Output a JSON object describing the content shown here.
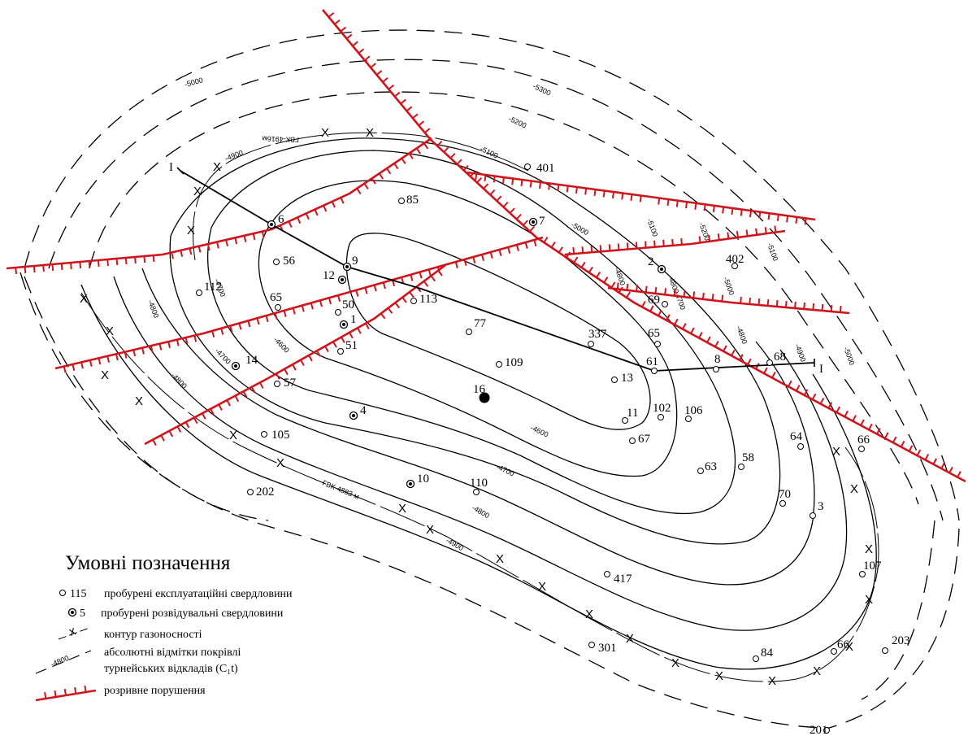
{
  "legend": {
    "title": "Умовні   позначення",
    "items": [
      {
        "symbol_text": "115",
        "text": "пробурені  експлуатаційні свердловини"
      },
      {
        "symbol_text": "5",
        "text": "пробурені  розвідувальні свердловини"
      },
      {
        "symbol_text": "",
        "text": "контур газоносності"
      },
      {
        "symbol_text": "-4800",
        "text": "абсолютні відмітки покрівлі"
      },
      {
        "symbol_text": "",
        "text": "турнейських відкладів (C₁t)"
      },
      {
        "symbol_text": "",
        "text": "розривне порушення"
      }
    ]
  },
  "section_line": {
    "start_label": "I",
    "end_label": "I"
  },
  "gwc_labels": [
    "ГВК-4916м",
    "ГВК-4883 м"
  ],
  "contour_labels": [
    "-4600",
    "-4700",
    "-4800",
    "-4900",
    "-5000",
    "-5100",
    "-5200",
    "-5300"
  ],
  "exploration_wells": [
    "6",
    "9",
    "12",
    "1",
    "14",
    "4",
    "10",
    "7",
    "2",
    "16"
  ],
  "production_wells": [
    "85",
    "401",
    "56",
    "112",
    "65",
    "50",
    "51",
    "57",
    "105",
    "202",
    "113",
    "77",
    "109",
    "337",
    "65",
    "13",
    "61",
    "11",
    "102",
    "106",
    "67",
    "63",
    "58",
    "64",
    "8",
    "68",
    "69",
    "402",
    "66",
    "70",
    "3",
    "110",
    "107",
    "417",
    "301",
    "84",
    "66",
    "203",
    "201"
  ],
  "colors": {
    "fault": "#d0141c",
    "contour": "#000000",
    "background": "#ffffff"
  }
}
